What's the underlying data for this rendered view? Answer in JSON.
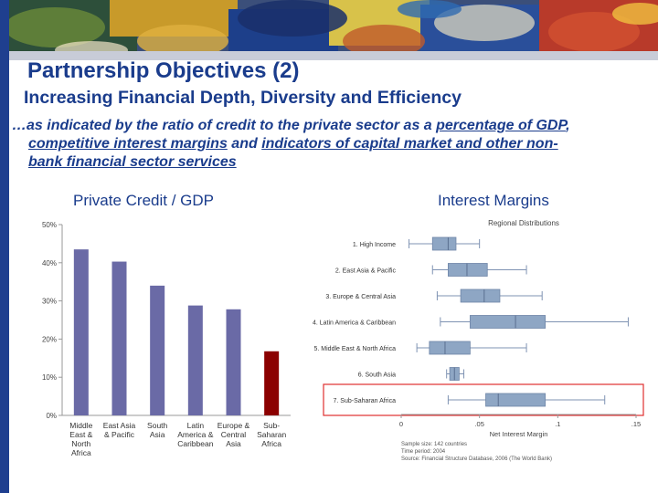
{
  "slide": {
    "title": "Partnership Objectives (2)",
    "subtitle": "Increasing Financial Depth, Diversity and Efficiency",
    "desc_line1_a": "…as indicated by the ratio of credit to the private sector as a ",
    "desc_line1_link": "percentage of GDP",
    "desc_line1_b": ",",
    "desc_line2_link": "competitive interest margins",
    "desc_line2_a": " and ",
    "desc_line2_link2": "indicators of capital market and other non-",
    "desc_line3_link": "bank financial sector services",
    "credit_heading": "Private Credit / GDP",
    "margin_heading": "Interest Margins"
  },
  "colors": {
    "title": "#1a3c8c",
    "bar": "#6a6aa6",
    "bar_highlight": "#8b0000",
    "box": "#8ea6c4",
    "highlight_frame": "#e03030"
  },
  "chart_data": [
    {
      "type": "bar",
      "title": "Private Credit / GDP",
      "categories": [
        [
          "Middle",
          "East &",
          "North",
          "Africa"
        ],
        [
          "East Asia",
          "& Pacific"
        ],
        [
          "South",
          "Asia"
        ],
        [
          "Latin",
          "America &",
          "Caribbean"
        ],
        [
          "Europe &",
          "Central",
          "Asia"
        ],
        [
          "Sub-",
          "Saharan",
          "Africa"
        ]
      ],
      "values": [
        43.5,
        40.3,
        34.0,
        28.8,
        27.8,
        16.8
      ],
      "highlight_index": 5,
      "ylim": [
        0,
        50
      ],
      "yticks": [
        "0%",
        "10%",
        "20%",
        "30%",
        "40%",
        "50%"
      ],
      "grid": false
    },
    {
      "type": "box",
      "title": "Regional Distributions",
      "categories": [
        "1. High Income",
        "2. East Asia & Pacific",
        "3. Europe & Central Asia",
        "4. Latin America & Caribbean",
        "5. Middle East & North Africa",
        "6. South Asia",
        "7. Sub-Saharan Africa"
      ],
      "boxes": [
        {
          "min": 0.005,
          "q1": 0.02,
          "median": 0.03,
          "q3": 0.035,
          "max": 0.05
        },
        {
          "min": 0.02,
          "q1": 0.03,
          "median": 0.042,
          "q3": 0.055,
          "max": 0.08
        },
        {
          "min": 0.023,
          "q1": 0.038,
          "median": 0.053,
          "q3": 0.063,
          "max": 0.09
        },
        {
          "min": 0.025,
          "q1": 0.044,
          "median": 0.073,
          "q3": 0.092,
          "max": 0.145
        },
        {
          "min": 0.01,
          "q1": 0.018,
          "median": 0.028,
          "q3": 0.044,
          "max": 0.08
        },
        {
          "min": 0.029,
          "q1": 0.031,
          "median": 0.034,
          "q3": 0.037,
          "max": 0.04
        },
        {
          "min": 0.03,
          "q1": 0.054,
          "median": 0.062,
          "q3": 0.092,
          "max": 0.13
        }
      ],
      "highlight_index": 6,
      "xlabel": "Net Interest Margin",
      "xlim": [
        0,
        0.15
      ],
      "xticks": [
        "0",
        ".05",
        ".1",
        ".15"
      ],
      "notes": [
        "Sample size: 142 countries",
        "Time period: 2004",
        "Source: Financial Structure Database, 2006 (The World Bank)"
      ]
    }
  ]
}
